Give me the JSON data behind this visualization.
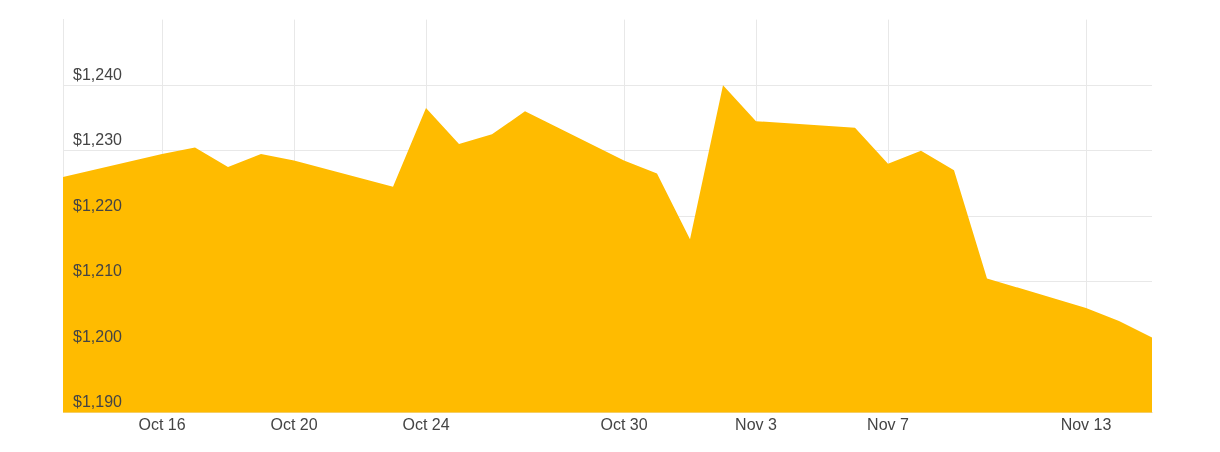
{
  "chart_data": {
    "type": "area",
    "x": [
      "--10-13",
      "--10-16",
      "--10-17",
      "--10-18",
      "--10-19",
      "--10-20",
      "--10-23",
      "--10-24",
      "--10-25",
      "--10-26",
      "--10-27",
      "--10-30",
      "--10-31",
      "--11-01",
      "--11-02",
      "--11-03",
      "--11-06",
      "--11-07",
      "--11-08",
      "--11-09",
      "--11-10",
      "--11-13",
      "--11-14",
      "--11-15"
    ],
    "series": [
      {
        "color": "#ffbb00",
        "values": [
          1226,
          1229.5,
          1230.5,
          1227.5,
          1229.5,
          1228.5,
          1224.5,
          1236.5,
          1231,
          1232.5,
          1236,
          1228.5,
          1226.5,
          1216.5,
          1240,
          1234.5,
          1233.5,
          1228,
          1230,
          1227,
          1210.5,
          1206,
          1204,
          1201.5
        ]
      }
    ],
    "xlim": [
      "--10-13",
      "--11-15"
    ],
    "xticks": [
      {
        "value": "--10-16",
        "label": "Oct 16"
      },
      {
        "value": "--10-20",
        "label": "Oct 20"
      },
      {
        "value": "--10-24",
        "label": "Oct 24"
      },
      {
        "value": "--10-30",
        "label": "Oct 30"
      },
      {
        "value": "--11-03",
        "label": "Nov 3"
      },
      {
        "value": "--11-07",
        "label": "Nov 7"
      },
      {
        "value": "--11-13",
        "label": "Nov 13"
      }
    ],
    "ylim": [
      1190,
      1250
    ],
    "yticks": [
      {
        "value": 1190,
        "label": "$1,190"
      },
      {
        "value": 1200,
        "label": "$1,200"
      },
      {
        "value": 1210,
        "label": "$1,210"
      },
      {
        "value": 1220,
        "label": "$1,220"
      },
      {
        "value": 1230,
        "label": "$1,230"
      },
      {
        "value": 1240,
        "label": "$1,240"
      }
    ],
    "grid": true,
    "legend": false
  }
}
